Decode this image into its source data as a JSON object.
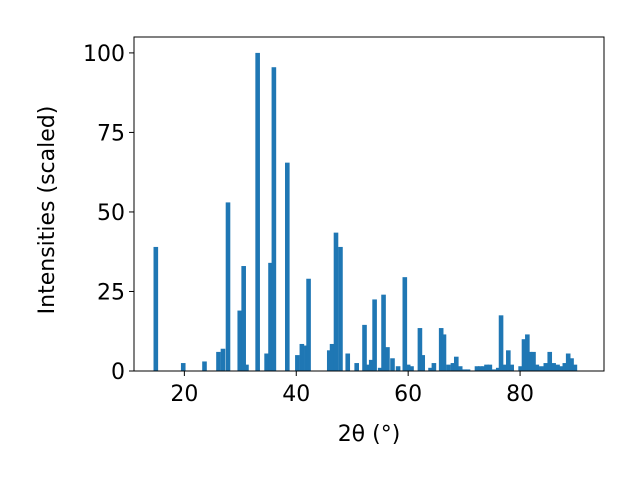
{
  "chart_data": {
    "type": "bar",
    "xlabel": "2θ (°)",
    "ylabel": "Intensities (scaled)",
    "xlim": [
      11,
      95
    ],
    "ylim": [
      0,
      105
    ],
    "x_ticks": [
      20,
      40,
      60,
      80
    ],
    "y_ticks": [
      0,
      25,
      50,
      75,
      100
    ],
    "bar_color": "#1f77b4",
    "grid": false,
    "series": [
      {
        "x": [
          14.9,
          19.8,
          23.6,
          26.1,
          26.9,
          27.8,
          29.9,
          30.6,
          31.1,
          33.1,
          34.7,
          35.4,
          36.0,
          38.4,
          40.2,
          41.0,
          41.8,
          42.2,
          45.9,
          46.4,
          47.1,
          47.9,
          49.2,
          50.8,
          52.2,
          52.8,
          53.4,
          54.0,
          55.0,
          55.6,
          56.3,
          57.2,
          58.2,
          59.4,
          60.0,
          60.6,
          62.1,
          62.6,
          64.0,
          64.6,
          65.9,
          66.4,
          67.2,
          68.0,
          68.6,
          69.3,
          70.0,
          70.7,
          72.3,
          72.9,
          73.5,
          74.0,
          74.6,
          75.3,
          76.1,
          76.6,
          77.3,
          77.9,
          78.5,
          80.1,
          80.7,
          81.3,
          81.8,
          82.4,
          83.0,
          83.8,
          84.6,
          85.3,
          86.0,
          86.7,
          87.3,
          88.0,
          88.6,
          89.2,
          89.8
        ],
        "values": [
          39,
          2.5,
          3,
          6,
          7,
          53,
          19,
          33,
          2,
          100,
          5.5,
          34,
          95.5,
          65.5,
          5,
          8.5,
          8,
          29,
          6.5,
          8.5,
          43.5,
          39,
          5.5,
          2.5,
          14.5,
          2,
          3.5,
          22.5,
          1,
          24,
          7.5,
          4,
          1.5,
          29.5,
          2,
          1.5,
          13.5,
          5,
          1,
          2.5,
          13.5,
          11.5,
          2,
          2.5,
          4.5,
          1.5,
          0.5,
          0.5,
          1.5,
          1.5,
          1.5,
          2,
          2,
          0.5,
          1,
          17.5,
          2,
          6.5,
          2,
          1.5,
          10,
          11.5,
          6,
          6,
          2,
          1.5,
          2.5,
          6,
          2.5,
          2,
          1.5,
          2.5,
          5.5,
          4,
          2
        ]
      }
    ]
  }
}
